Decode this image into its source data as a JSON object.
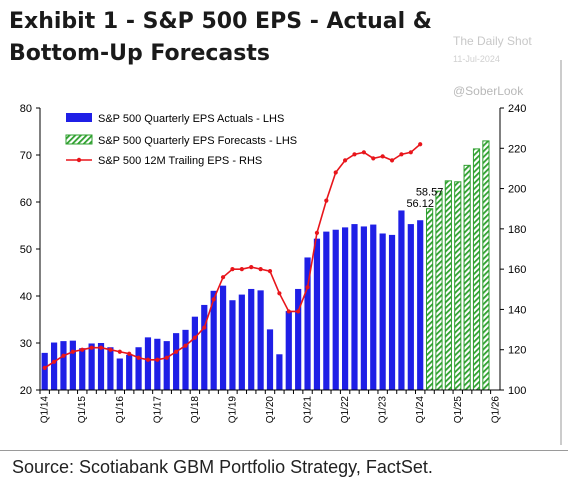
{
  "header": {
    "title": "Exhibit 1 - S&P 500 EPS - Actual & Bottom-Up Forecasts",
    "watermark_name": "The Daily Shot",
    "watermark_date": "11-Jul-2024",
    "watermark_handle": "@SoberLook"
  },
  "footer": {
    "source": "Source: Scotiabank GBM Portfolio Strategy, FactSet."
  },
  "colors": {
    "actual": "#1f1fe6",
    "forecast": "#2fa02f",
    "trailing": "#e8151b"
  },
  "chart_data": {
    "type": "bar",
    "title": "Exhibit 1 - S&P 500 EPS - Actual & Bottom-Up Forecasts",
    "x": [
      "Q1/14",
      "Q2/14",
      "Q3/14",
      "Q4/14",
      "Q1/15",
      "Q2/15",
      "Q3/15",
      "Q4/15",
      "Q1/16",
      "Q2/16",
      "Q3/16",
      "Q4/16",
      "Q1/17",
      "Q2/17",
      "Q3/17",
      "Q4/17",
      "Q1/18",
      "Q2/18",
      "Q3/18",
      "Q4/18",
      "Q1/19",
      "Q2/19",
      "Q3/19",
      "Q4/19",
      "Q1/20",
      "Q2/20",
      "Q3/20",
      "Q4/20",
      "Q1/21",
      "Q2/21",
      "Q3/21",
      "Q4/21",
      "Q1/22",
      "Q2/22",
      "Q3/22",
      "Q4/22",
      "Q1/23",
      "Q2/23",
      "Q3/23",
      "Q4/23",
      "Q1/24",
      "Q2/24",
      "Q3/24",
      "Q4/24",
      "Q1/25",
      "Q2/25",
      "Q3/25",
      "Q4/25",
      "Q1/26"
    ],
    "xtick_labels": [
      "Q1/14",
      "Q1/15",
      "Q1/16",
      "Q1/17",
      "Q1/18",
      "Q1/19",
      "Q1/20",
      "Q1/21",
      "Q1/22",
      "Q1/23",
      "Q1/24",
      "Q1/25",
      "Q1/26"
    ],
    "ylim": [
      20,
      80
    ],
    "yticks": [
      20,
      30,
      40,
      50,
      60,
      70,
      80
    ],
    "y2lim": [
      100,
      240
    ],
    "y2ticks": [
      100,
      120,
      140,
      160,
      180,
      200,
      220,
      240
    ],
    "legend_position": "top-left",
    "grid": false,
    "series": [
      {
        "name": "S&P 500 Quarterly EPS Actuals - LHS",
        "type": "bar",
        "axis": "left",
        "values": [
          27.9,
          30.1,
          30.4,
          30.5,
          28.9,
          29.9,
          30.0,
          29.1,
          26.7,
          27.5,
          29.1,
          31.2,
          30.9,
          30.4,
          32.1,
          32.8,
          35.6,
          38.1,
          41.1,
          42.2,
          39.1,
          40.3,
          41.5,
          41.2,
          32.9,
          27.6,
          36.8,
          41.5,
          48.2,
          52.2,
          53.7,
          54.1,
          54.6,
          55.3,
          54.8,
          55.2,
          53.3,
          53.0,
          58.2,
          55.3,
          56.12,
          null,
          null,
          null,
          null,
          null,
          null,
          null,
          null
        ]
      },
      {
        "name": "S&P 500 Quarterly EPS Forecasts - LHS",
        "type": "bar",
        "axis": "left",
        "values": [
          null,
          null,
          null,
          null,
          null,
          null,
          null,
          null,
          null,
          null,
          null,
          null,
          null,
          null,
          null,
          null,
          null,
          null,
          null,
          null,
          null,
          null,
          null,
          null,
          null,
          null,
          null,
          null,
          null,
          null,
          null,
          null,
          null,
          null,
          null,
          null,
          null,
          null,
          null,
          null,
          null,
          58.57,
          62.3,
          64.5,
          64.3,
          67.8,
          71.3,
          73.0,
          null
        ]
      },
      {
        "name": "S&P 500 12M Trailing EPS - RHS",
        "type": "line",
        "axis": "right",
        "values": [
          111,
          114,
          117,
          119,
          120,
          121,
          121,
          120,
          119,
          118,
          116,
          115,
          115,
          116,
          119,
          122,
          126,
          131,
          145,
          156,
          160,
          160,
          161,
          160,
          159,
          148,
          139,
          139,
          151,
          178,
          194,
          208,
          214,
          217,
          218,
          215,
          216,
          214,
          217,
          218,
          222,
          null,
          null,
          null,
          null,
          null,
          null,
          null,
          null
        ]
      }
    ],
    "data_labels": [
      {
        "text": "56.12",
        "index": 40
      },
      {
        "text": "58.57",
        "index": 41
      }
    ]
  }
}
